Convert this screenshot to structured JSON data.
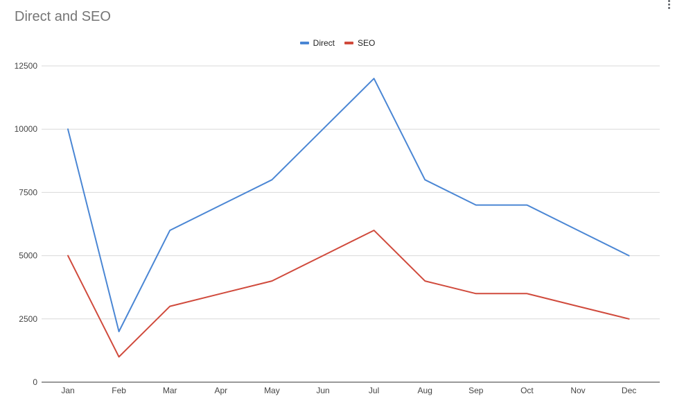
{
  "chart_data": {
    "type": "line",
    "title": "Direct and SEO",
    "categories": [
      "Jan",
      "Feb",
      "Mar",
      "Apr",
      "May",
      "Jun",
      "Jul",
      "Aug",
      "Sep",
      "Oct",
      "Nov",
      "Dec"
    ],
    "series": [
      {
        "name": "Direct",
        "color": "#4a86d4",
        "values": [
          10000,
          2000,
          6000,
          7000,
          8000,
          10000,
          12000,
          8000,
          7000,
          7000,
          6000,
          5000
        ]
      },
      {
        "name": "SEO",
        "color": "#d04a3c",
        "values": [
          5000,
          1000,
          3000,
          3500,
          4000,
          5000,
          6000,
          4000,
          3500,
          3500,
          3000,
          2500
        ]
      }
    ],
    "yticks": [
      0,
      2500,
      5000,
      7500,
      10000,
      12500
    ],
    "ylim": [
      0,
      12500
    ],
    "xlabel": "",
    "ylabel": "",
    "grid": true,
    "legend_position": "top"
  },
  "colors": {
    "grid": "#d9d9d9",
    "axis": "#333333",
    "title": "#757575"
  },
  "icons": {
    "menu": "more-vert-icon"
  }
}
